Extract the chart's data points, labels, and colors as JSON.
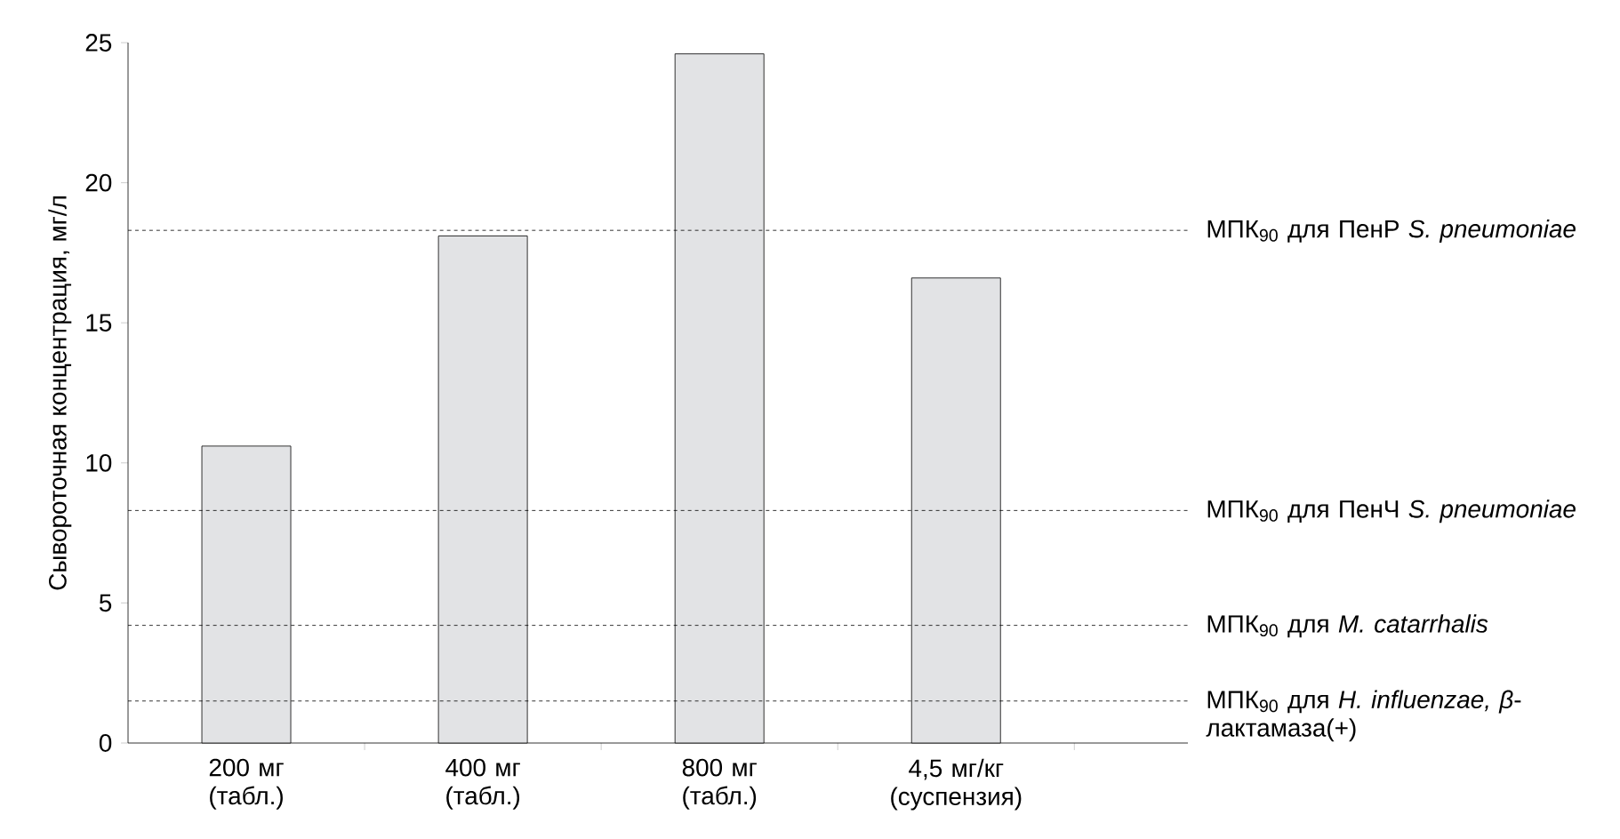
{
  "chart_data": {
    "type": "bar",
    "ylabel": "Сывороточная концентрация, мг/л",
    "categories": [
      "200 мг (табл.)",
      "400 мг (табл.)",
      "800 мг (табл.)",
      "4,5 мг/кг (суспензия)"
    ],
    "values": [
      10.6,
      18.1,
      24.6,
      16.6
    ],
    "color": "#e2e3e5",
    "ylim": [
      0,
      25
    ],
    "yticks": [
      0,
      5,
      10,
      15,
      20,
      25
    ],
    "grid": false,
    "ref_lines": [
      {
        "axis": "y",
        "value": 18.3,
        "label": "МПК$_{90}$ для ПенР *S. pneumoniae*",
        "line_style": "dotted",
        "color": "#000000"
      },
      {
        "axis": "y",
        "value": 8.3,
        "label": "МПК$_{90}$ для ПенЧ *S. pneumoniae*",
        "line_style": "dotted",
        "color": "#000000"
      },
      {
        "axis": "y",
        "value": 4.2,
        "label": "МПК$_{90}$ для *M. catarrhalis*",
        "line_style": "dotted",
        "color": "#000000"
      },
      {
        "axis": "y",
        "value": 1.5,
        "label": "МПК$_{90}$ для *H. influenzae, β*-лактамаза(+)",
        "line_style": "dotted",
        "color": "#000000"
      }
    ]
  }
}
